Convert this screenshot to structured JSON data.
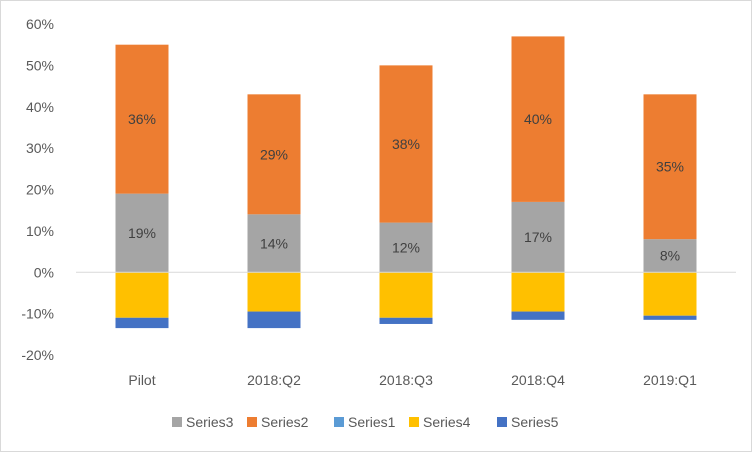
{
  "chart_data": {
    "type": "bar",
    "stacked": true,
    "categories": [
      "Pilot",
      "2018:Q2",
      "2018:Q3",
      "2018:Q4",
      "2019:Q1"
    ],
    "ylim": [
      -20,
      60
    ],
    "yticks": [
      -20,
      -10,
      0,
      10,
      20,
      30,
      40,
      50,
      60
    ],
    "ytick_labels": [
      "-20%",
      "-10%",
      "0%",
      "10%",
      "20%",
      "30%",
      "40%",
      "50%",
      "60%"
    ],
    "grid": false,
    "legend_position": "bottom",
    "series": [
      {
        "name": "Series3",
        "color": "#a5a5a5",
        "values": [
          19,
          14,
          12,
          17,
          8
        ],
        "labels": [
          "19%",
          "14%",
          "12%",
          "17%",
          "8%"
        ]
      },
      {
        "name": "Series2",
        "color": "#ed7d31",
        "values": [
          36,
          29,
          38,
          40,
          35
        ],
        "labels": [
          "36%",
          "29%",
          "38%",
          "40%",
          "35%"
        ]
      },
      {
        "name": "Series1",
        "color": "#5b9bd5",
        "values": [
          0,
          0,
          0,
          0,
          0
        ]
      },
      {
        "name": "Series4",
        "color": "#ffc000",
        "values": [
          -11,
          -9.5,
          -11,
          -9.5,
          -10.5
        ]
      },
      {
        "name": "Series5",
        "color": "#4472c4",
        "values": [
          -2.5,
          -4,
          -1.5,
          -2,
          -1
        ]
      }
    ]
  }
}
